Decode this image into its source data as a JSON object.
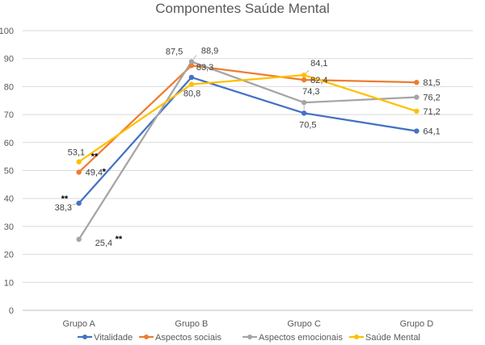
{
  "chart_data": {
    "type": "line",
    "title": "Componentes Saúde Mental",
    "xlabel": "",
    "ylabel": "",
    "categories": [
      "Grupo A",
      "Grupo B",
      "Grupo C",
      "Grupo D"
    ],
    "ylim": [
      0,
      100
    ],
    "yticks": [
      0,
      10,
      20,
      30,
      40,
      50,
      60,
      70,
      80,
      90,
      100
    ],
    "grid": true,
    "legend_position": "bottom",
    "series": [
      {
        "name": "Vitalidade",
        "color": "#4472C4",
        "values": [
          38.3,
          83.3,
          70.5,
          64.1
        ],
        "labels": [
          "38,3",
          "83,3",
          "70,5",
          "64,1"
        ]
      },
      {
        "name": "Aspectos sociais",
        "color": "#ED7D31",
        "values": [
          49.4,
          87.5,
          82.4,
          81.5
        ],
        "labels": [
          "49,4",
          "87,5",
          "82,4",
          "81,5"
        ]
      },
      {
        "name": "Aspectos emocionais",
        "color": "#A5A5A5",
        "values": [
          25.4,
          88.9,
          74.3,
          76.2
        ],
        "labels": [
          "25,4",
          "88,9",
          "74,3",
          "76,2"
        ]
      },
      {
        "name": "Saúde Mental",
        "color": "#FFC000",
        "values": [
          53.1,
          80.8,
          84.1,
          71.2
        ],
        "labels": [
          "53,1",
          "80,8",
          "84,1",
          "71,2"
        ]
      }
    ],
    "annotations": [
      {
        "series": 0,
        "point": 0,
        "text": "**"
      },
      {
        "series": 1,
        "point": 0,
        "text": "*"
      },
      {
        "series": 2,
        "point": 0,
        "text": "**"
      },
      {
        "series": 3,
        "point": 0,
        "text": "**"
      }
    ]
  }
}
